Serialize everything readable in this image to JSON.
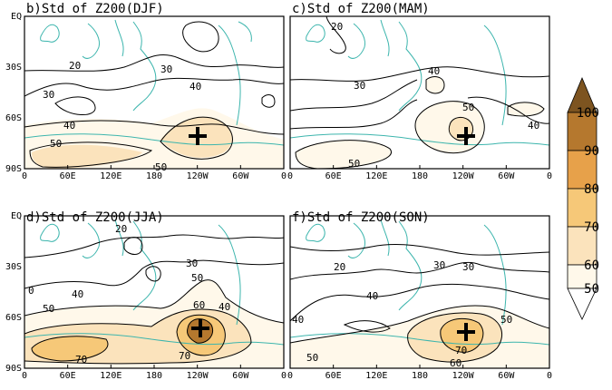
{
  "panels": [
    {
      "id": "djf",
      "title": "b)Std of Z200(DJF)",
      "contour_labels": [
        "20",
        "30",
        "30",
        "40",
        "40",
        "50",
        "50"
      ]
    },
    {
      "id": "mam",
      "title": "c)Std of Z200(MAM)",
      "contour_labels": [
        "20",
        "30",
        "40",
        "40",
        "50",
        "50"
      ]
    },
    {
      "id": "jja",
      "title": "d)Std of Z200(JJA)",
      "contour_labels": [
        "20",
        "30",
        "40",
        "50",
        "50",
        "40",
        "60",
        "70",
        "70",
        "0"
      ]
    },
    {
      "id": "son",
      "title": "f)Std of Z200(SON)",
      "contour_labels": [
        "20",
        "30",
        "30",
        "40",
        "40",
        "50",
        "50",
        "70",
        "60"
      ]
    }
  ],
  "axes": {
    "y_ticks": [
      "EQ",
      "30S",
      "60S",
      "90S"
    ],
    "x_ticks": [
      "0",
      "60E",
      "120E",
      "180",
      "120W",
      "60W",
      "0"
    ]
  },
  "colorbar": {
    "levels": [
      "100",
      "90",
      "80",
      "70",
      "60",
      "50"
    ],
    "colors": [
      "#7d5420",
      "#b5782e",
      "#e7a14a",
      "#f6c878",
      "#fbe3bc",
      "#fff8ea",
      "#ffffff"
    ]
  },
  "colors": {
    "coast": "#3cb5ad",
    "contour": "#000000",
    "marker": "#000000"
  }
}
